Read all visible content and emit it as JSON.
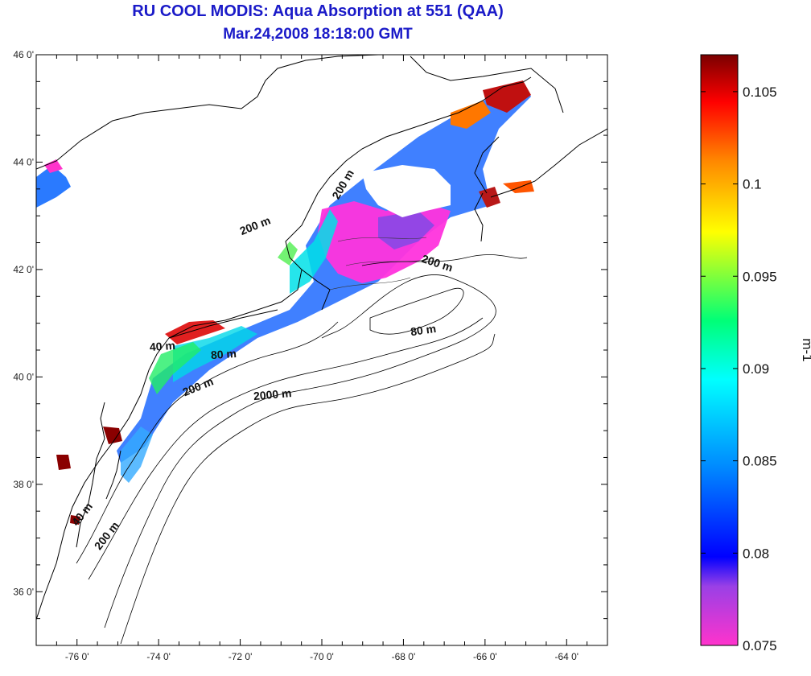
{
  "title": "RU COOL MODIS: Aqua Absorption at 551 (QAA)",
  "subtitle": "Mar.24,2008 18:18:00 GMT",
  "map": {
    "lon_range": [
      -77,
      -63
    ],
    "lat_range": [
      35,
      46
    ],
    "lon_ticks": [
      {
        "value": -76,
        "label": "-76 0'"
      },
      {
        "value": -74,
        "label": "-74 0'"
      },
      {
        "value": -72,
        "label": "-72 0'"
      },
      {
        "value": -70,
        "label": "-70 0'"
      },
      {
        "value": -68,
        "label": "-68 0'"
      },
      {
        "value": -66,
        "label": "-66 0'"
      },
      {
        "value": -64,
        "label": "-64 0'"
      }
    ],
    "lat_ticks": [
      {
        "value": 46,
        "label": "46 0'"
      },
      {
        "value": 44,
        "label": "44 0'"
      },
      {
        "value": 42,
        "label": "42 0'"
      },
      {
        "value": 40,
        "label": "40 0'"
      },
      {
        "value": 38,
        "label": "38 0'"
      },
      {
        "value": 36,
        "label": "36 0'"
      }
    ],
    "contour_labels": [
      {
        "text": "200 m",
        "lon": -71.6,
        "lat": 42.75
      },
      {
        "text": "200 m",
        "lon": -69.4,
        "lat": 43.55
      },
      {
        "text": "200 m",
        "lon": -67.2,
        "lat": 42.05
      },
      {
        "text": "80 m",
        "lon": -67.5,
        "lat": 40.8
      },
      {
        "text": "40 m",
        "lon": -73.9,
        "lat": 40.5
      },
      {
        "text": "80 m",
        "lon": -72.4,
        "lat": 40.35
      },
      {
        "text": "200 m",
        "lon": -73.0,
        "lat": 39.75
      },
      {
        "text": "2000 m",
        "lon": -71.2,
        "lat": 39.6
      },
      {
        "text": "40 m",
        "lon": -75.8,
        "lat": 37.4
      },
      {
        "text": "200 m",
        "lon": -75.2,
        "lat": 37.0
      }
    ]
  },
  "colorbar": {
    "label": "m-1",
    "min": 0.075,
    "max": 0.107,
    "ticks": [
      {
        "value": 0.105,
        "label": "0.105"
      },
      {
        "value": 0.1,
        "label": "0.1"
      },
      {
        "value": 0.095,
        "label": "0.095"
      },
      {
        "value": 0.09,
        "label": "0.09"
      },
      {
        "value": 0.085,
        "label": "0.085"
      },
      {
        "value": 0.08,
        "label": "0.08"
      },
      {
        "value": 0.075,
        "label": "0.075"
      }
    ],
    "colors": [
      "#ff33cc",
      "#9a40e6",
      "#0000ff",
      "#0088ff",
      "#00ffff",
      "#00ff77",
      "#ffff00",
      "#ff8800",
      "#ff0000",
      "#7a0000"
    ]
  }
}
